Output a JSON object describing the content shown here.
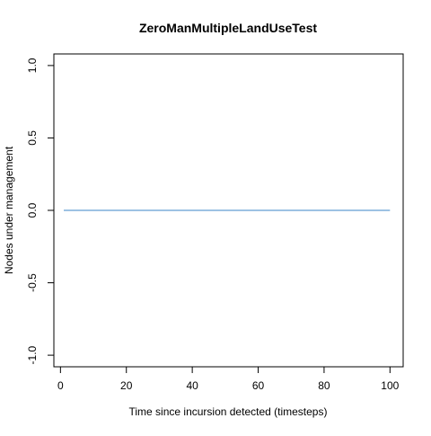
{
  "chart_data": {
    "type": "line",
    "title": "ZeroManMultipleLandUseTest",
    "xlabel": "Time since incursion detected (timesteps)",
    "ylabel": "Nodes under management",
    "xlim": [
      -2,
      104
    ],
    "ylim": [
      -1.08,
      1.08
    ],
    "xticks": [
      0,
      20,
      40,
      60,
      80,
      100
    ],
    "xtick_labels": [
      "0",
      "20",
      "40",
      "60",
      "80",
      "100"
    ],
    "yticks": [
      -1.0,
      -0.5,
      0.0,
      0.5,
      1.0
    ],
    "ytick_labels": [
      "-1.0",
      "-0.5",
      "0.0",
      "0.5",
      "1.0"
    ],
    "grid": false,
    "series": [
      {
        "color": "#3b86c7",
        "x": [
          1,
          100
        ],
        "y": [
          0,
          0
        ]
      }
    ]
  }
}
